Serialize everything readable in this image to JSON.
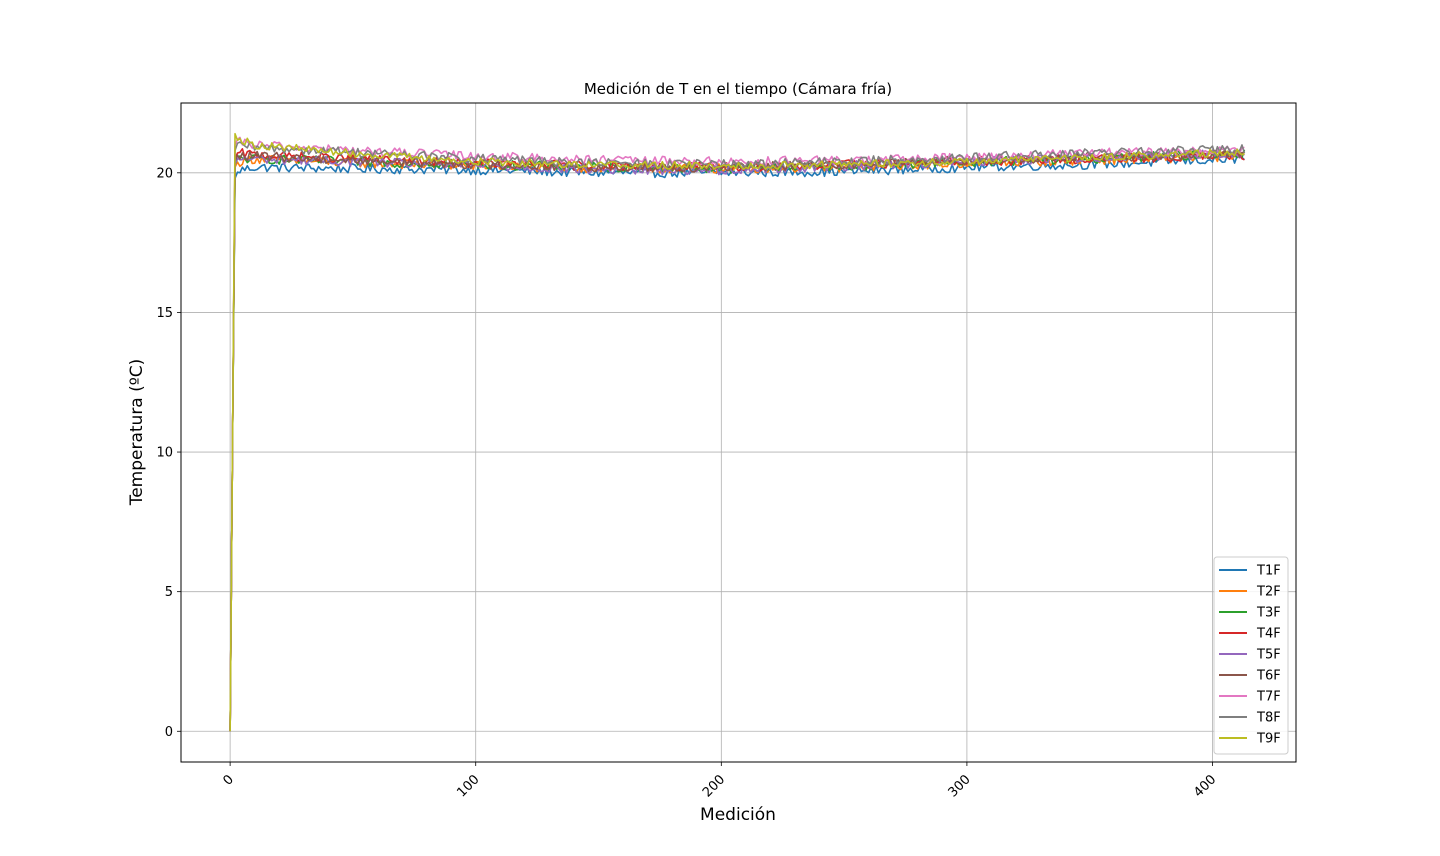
{
  "chart_data": {
    "type": "line",
    "title": "Medición de T en el tiempo (Cámara fría)",
    "xlabel": "Medición",
    "ylabel": "Temperatura (ºC)",
    "xlim": [
      -20,
      434
    ],
    "ylim": [
      -1.1,
      22.5
    ],
    "xticks": [
      0,
      100,
      200,
      300,
      400
    ],
    "yticks": [
      0,
      5,
      10,
      15,
      20
    ],
    "xtick_labels": [
      "0",
      "100",
      "200",
      "300",
      "400"
    ],
    "ytick_labels": [
      "0",
      "5",
      "10",
      "15",
      "20"
    ],
    "grid": true,
    "legend_position": "lower-right",
    "n_points": 414,
    "series": [
      {
        "name": "T1F",
        "color": "#1f77b4",
        "anchors": [
          [
            0,
            0
          ],
          [
            1,
            10.5
          ],
          [
            2,
            19.8
          ],
          [
            4,
            20.1
          ],
          [
            10,
            20.2
          ],
          [
            50,
            20.15
          ],
          [
            100,
            20.1
          ],
          [
            150,
            20.0
          ],
          [
            200,
            20.0
          ],
          [
            250,
            20.05
          ],
          [
            300,
            20.2
          ],
          [
            350,
            20.3
          ],
          [
            413,
            20.5
          ]
        ],
        "noise": 0.12
      },
      {
        "name": "T2F",
        "color": "#ff7f0e",
        "anchors": [
          [
            0,
            0
          ],
          [
            1,
            10.5
          ],
          [
            2,
            20.2
          ],
          [
            4,
            20.4
          ],
          [
            10,
            20.5
          ],
          [
            50,
            20.35
          ],
          [
            100,
            20.25
          ],
          [
            150,
            20.15
          ],
          [
            200,
            20.15
          ],
          [
            250,
            20.2
          ],
          [
            300,
            20.35
          ],
          [
            350,
            20.45
          ],
          [
            413,
            20.6
          ]
        ],
        "noise": 0.12
      },
      {
        "name": "T3F",
        "color": "#2ca02c",
        "anchors": [
          [
            0,
            0
          ],
          [
            1,
            10.5
          ],
          [
            2,
            20.3
          ],
          [
            4,
            20.5
          ],
          [
            10,
            20.5
          ],
          [
            50,
            20.4
          ],
          [
            100,
            20.3
          ],
          [
            150,
            20.2
          ],
          [
            200,
            20.15
          ],
          [
            250,
            20.25
          ],
          [
            300,
            20.4
          ],
          [
            350,
            20.5
          ],
          [
            413,
            20.7
          ]
        ],
        "noise": 0.12
      },
      {
        "name": "T4F",
        "color": "#d62728",
        "anchors": [
          [
            0,
            0
          ],
          [
            1,
            10.5
          ],
          [
            2,
            20.5
          ],
          [
            4,
            20.7
          ],
          [
            10,
            20.65
          ],
          [
            50,
            20.5
          ],
          [
            100,
            20.35
          ],
          [
            150,
            20.25
          ],
          [
            200,
            20.2
          ],
          [
            250,
            20.3
          ],
          [
            300,
            20.4
          ],
          [
            350,
            20.5
          ],
          [
            413,
            20.6
          ]
        ],
        "noise": 0.12
      },
      {
        "name": "T5F",
        "color": "#9467bd",
        "anchors": [
          [
            0,
            0
          ],
          [
            1,
            10.5
          ],
          [
            2,
            20.3
          ],
          [
            4,
            20.5
          ],
          [
            10,
            20.5
          ],
          [
            50,
            20.4
          ],
          [
            100,
            20.25
          ],
          [
            150,
            20.1
          ],
          [
            200,
            20.1
          ],
          [
            250,
            20.25
          ],
          [
            300,
            20.4
          ],
          [
            350,
            20.55
          ],
          [
            413,
            20.7
          ]
        ],
        "noise": 0.12
      },
      {
        "name": "T6F",
        "color": "#8c564b",
        "anchors": [
          [
            0,
            0
          ],
          [
            1,
            10.5
          ],
          [
            2,
            20.4
          ],
          [
            4,
            20.6
          ],
          [
            10,
            20.6
          ],
          [
            50,
            20.45
          ],
          [
            100,
            20.3
          ],
          [
            150,
            20.2
          ],
          [
            200,
            20.2
          ],
          [
            250,
            20.3
          ],
          [
            300,
            20.45
          ],
          [
            350,
            20.55
          ],
          [
            413,
            20.7
          ]
        ],
        "noise": 0.12
      },
      {
        "name": "T7F",
        "color": "#e377c2",
        "anchors": [
          [
            0,
            0
          ],
          [
            1,
            10.5
          ],
          [
            2,
            21.0
          ],
          [
            4,
            21.1
          ],
          [
            10,
            21.0
          ],
          [
            50,
            20.8
          ],
          [
            100,
            20.6
          ],
          [
            150,
            20.45
          ],
          [
            200,
            20.4
          ],
          [
            250,
            20.45
          ],
          [
            300,
            20.55
          ],
          [
            350,
            20.7
          ],
          [
            413,
            20.8
          ]
        ],
        "noise": 0.12
      },
      {
        "name": "T8F",
        "color": "#7f7f7f",
        "anchors": [
          [
            0,
            0
          ],
          [
            1,
            10.5
          ],
          [
            2,
            20.8
          ],
          [
            4,
            21.0
          ],
          [
            10,
            20.9
          ],
          [
            50,
            20.75
          ],
          [
            100,
            20.5
          ],
          [
            150,
            20.35
          ],
          [
            200,
            20.3
          ],
          [
            250,
            20.4
          ],
          [
            300,
            20.55
          ],
          [
            350,
            20.7
          ],
          [
            413,
            20.85
          ]
        ],
        "noise": 0.12
      },
      {
        "name": "T9F",
        "color": "#bcbd22",
        "anchors": [
          [
            0,
            0
          ],
          [
            1,
            10.5
          ],
          [
            2,
            21.4
          ],
          [
            4,
            21.2
          ],
          [
            10,
            21.0
          ],
          [
            50,
            20.7
          ],
          [
            100,
            20.4
          ],
          [
            150,
            20.3
          ],
          [
            200,
            20.25
          ],
          [
            250,
            20.3
          ],
          [
            300,
            20.4
          ],
          [
            350,
            20.55
          ],
          [
            413,
            20.75
          ]
        ],
        "noise": 0.1
      }
    ]
  }
}
